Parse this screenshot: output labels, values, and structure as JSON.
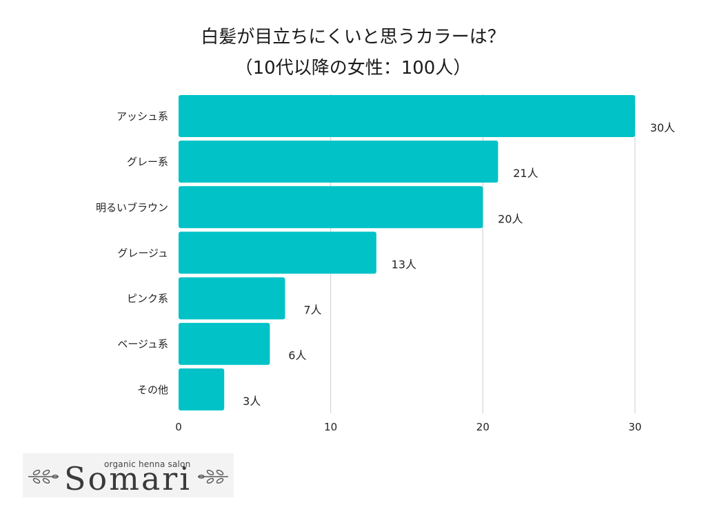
{
  "title": {
    "line1": "白髪が目立ちにくいと思うカラーは？",
    "line2": "（10代以降の女性：100人）"
  },
  "chart_data": {
    "type": "bar",
    "orientation": "horizontal",
    "categories": [
      "アッシュ系",
      "グレー系",
      "明るいブラウン",
      "グレージュ",
      "ピンク系",
      "ベージュ系",
      "その他"
    ],
    "values": [
      30,
      21,
      20,
      13,
      7,
      6,
      3
    ],
    "value_labels": [
      "30人",
      "21人",
      "20人",
      "13人",
      "7人",
      "6人",
      "3人"
    ],
    "x_ticks": [
      "0",
      "10",
      "20",
      "30"
    ],
    "xlim": [
      0,
      30
    ],
    "grid": "vertical",
    "bar_color": "#00c2c7",
    "grid_color": "#cccccc"
  },
  "logo": {
    "tagline": "organic henna salon",
    "brand": "Somari"
  }
}
